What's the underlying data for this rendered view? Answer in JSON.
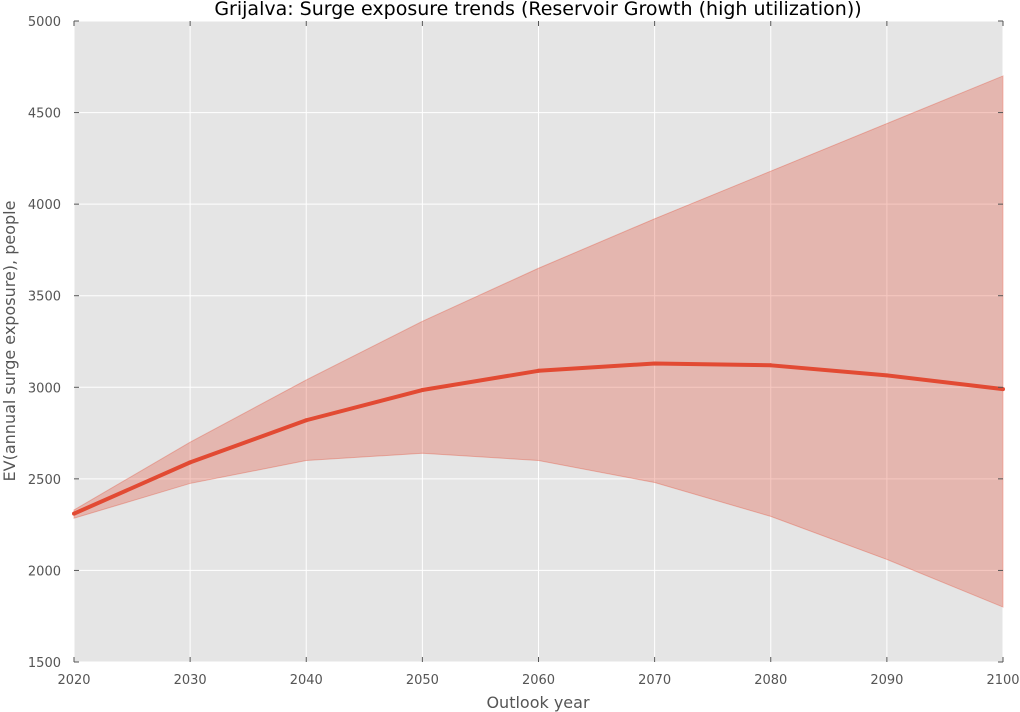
{
  "chart_data": {
    "type": "line",
    "title": "Grijalva: Surge exposure trends (Reservoir Growth (high utilization))",
    "xlabel": "Outlook year",
    "ylabel": "EV(annual surge exposure), people",
    "xlim": [
      2020,
      2100
    ],
    "ylim": [
      1500,
      5000
    ],
    "x": [
      2020,
      2030,
      2040,
      2050,
      2060,
      2070,
      2080,
      2090,
      2100
    ],
    "x_ticks": [
      "2020",
      "2030",
      "2040",
      "2050",
      "2060",
      "2070",
      "2080",
      "2090",
      "2100"
    ],
    "y_ticks": [
      "1500",
      "2000",
      "2500",
      "3000",
      "3500",
      "4000",
      "4500",
      "5000"
    ],
    "grid": true,
    "series": [
      {
        "values": [
          2310,
          2590,
          2820,
          2985,
          3090,
          3130,
          3120,
          3065,
          2990
        ],
        "lower": [
          2285,
          2475,
          2600,
          2640,
          2600,
          2480,
          2295,
          2060,
          1800
        ],
        "upper": [
          2330,
          2700,
          3040,
          3360,
          3650,
          3920,
          4180,
          4440,
          4700
        ],
        "color": "#e24a33",
        "band_color": "#e24a33"
      }
    ],
    "background": "#e5e5e5",
    "grid_color": "#ffffff"
  }
}
